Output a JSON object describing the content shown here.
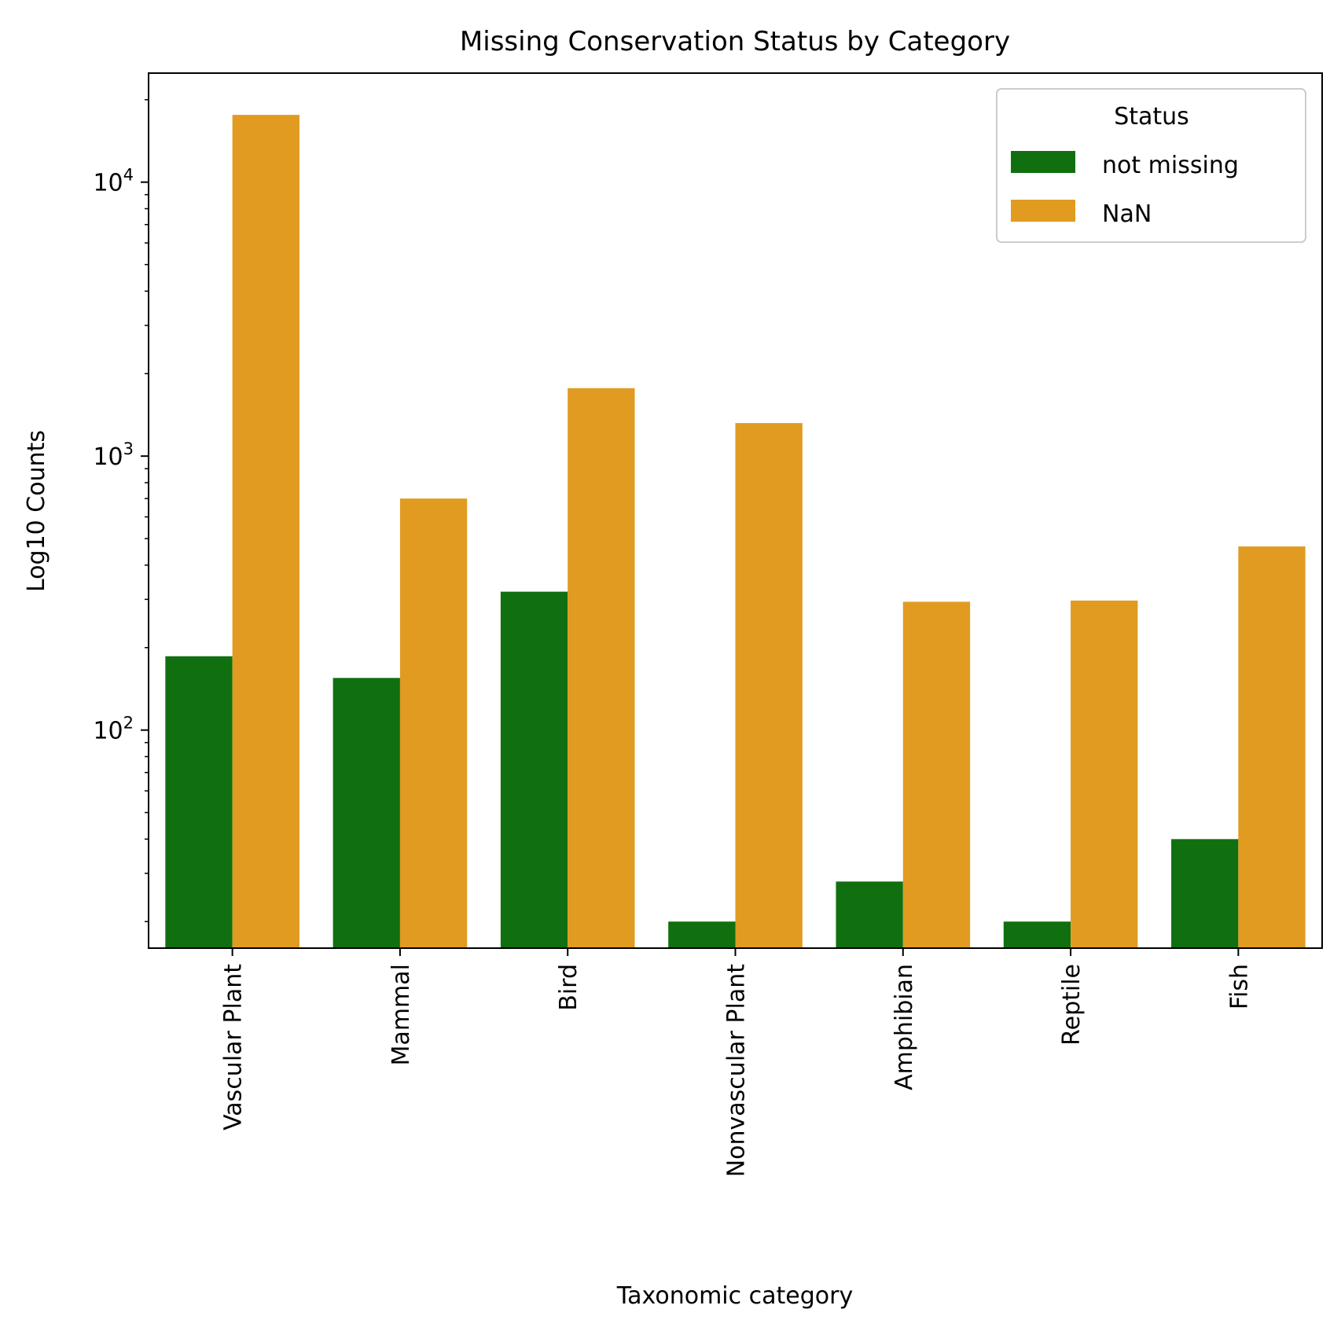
{
  "chart_data": {
    "type": "bar",
    "title": "Missing Conservation Status by Category",
    "xlabel": "Taxonomic category",
    "ylabel": "Log10 Counts",
    "yscale": "log",
    "ylim": [
      16,
      25000
    ],
    "ytick_labels": [
      {
        "value": 100,
        "base": "10",
        "exp": "2"
      },
      {
        "value": 1000,
        "base": "10",
        "exp": "3"
      },
      {
        "value": 10000,
        "base": "10",
        "exp": "4"
      }
    ],
    "categories": [
      "Vascular Plant",
      "Mammal",
      "Bird",
      "Nonvascular Plant",
      "Amphibian",
      "Reptile",
      "Fish"
    ],
    "series": [
      {
        "name": "not missing",
        "color": "#107010",
        "values": [
          186,
          155,
          320,
          20,
          28,
          20,
          40
        ]
      },
      {
        "name": "NaN",
        "color": "#e09b20",
        "values": [
          17600,
          700,
          1770,
          1320,
          294,
          297,
          468
        ]
      }
    ],
    "legend": {
      "title": "Status",
      "position": "top-right"
    },
    "grid": false
  }
}
